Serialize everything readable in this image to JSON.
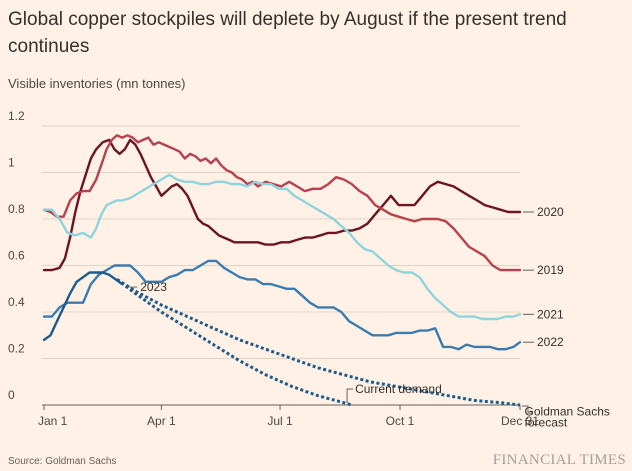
{
  "title": "Global copper stockpiles will deplete by August if the present trend continues",
  "subtitle": "Visible inventories (mn tonnes)",
  "source": "Source: Goldman Sachs",
  "brand": "FINANCIAL TIMES",
  "chart_data": {
    "type": "line",
    "title": "Global copper stockpiles will deplete by August if the present trend continues",
    "ylabel": "Visible inventories (mn tonnes)",
    "xlabel": "",
    "ylim": [
      0,
      1.2
    ],
    "xlim": [
      0,
      365
    ],
    "grid": true,
    "y_ticks": [
      {
        "value": 0,
        "label": "0"
      },
      {
        "value": 0.2,
        "label": "0.2"
      },
      {
        "value": 0.4,
        "label": "0.4"
      },
      {
        "value": 0.6,
        "label": "0.6"
      },
      {
        "value": 0.8,
        "label": "0.8"
      },
      {
        "value": 1.0,
        "label": "1"
      },
      {
        "value": 1.2,
        "label": "1.2"
      }
    ],
    "x_ticks": [
      {
        "value": 0,
        "label": "Jan 1"
      },
      {
        "value": 90,
        "label": "Apr 1"
      },
      {
        "value": 181,
        "label": "Jul 1"
      },
      {
        "value": 273,
        "label": "Oct 1"
      },
      {
        "value": 365,
        "label": "Dec 31"
      }
    ],
    "series": [
      {
        "name": "2020",
        "label": "2020",
        "color": "#6b1424",
        "style": "solid",
        "x": [
          0,
          6,
          12,
          16,
          20,
          24,
          28,
          32,
          36,
          40,
          45,
          50,
          54,
          58,
          62,
          66,
          70,
          74,
          78,
          82,
          86,
          90,
          94,
          98,
          102,
          106,
          110,
          114,
          118,
          122,
          126,
          130,
          134,
          138,
          142,
          146,
          152,
          158,
          164,
          170,
          176,
          182,
          188,
          194,
          200,
          206,
          212,
          218,
          224,
          230,
          236,
          242,
          248,
          254,
          260,
          266,
          272,
          278,
          284,
          290,
          296,
          302,
          308,
          314,
          320,
          326,
          332,
          338,
          344,
          350,
          356,
          360,
          365
        ],
        "values": [
          0.58,
          0.58,
          0.59,
          0.63,
          0.72,
          0.83,
          0.92,
          0.99,
          1.06,
          1.1,
          1.13,
          1.14,
          1.1,
          1.08,
          1.1,
          1.14,
          1.12,
          1.08,
          1.03,
          0.98,
          0.94,
          0.9,
          0.92,
          0.94,
          0.95,
          0.93,
          0.9,
          0.85,
          0.8,
          0.78,
          0.77,
          0.75,
          0.73,
          0.72,
          0.71,
          0.7,
          0.7,
          0.7,
          0.7,
          0.69,
          0.69,
          0.7,
          0.7,
          0.71,
          0.72,
          0.72,
          0.73,
          0.74,
          0.74,
          0.75,
          0.75,
          0.76,
          0.78,
          0.82,
          0.86,
          0.9,
          0.86,
          0.86,
          0.86,
          0.9,
          0.94,
          0.96,
          0.95,
          0.94,
          0.92,
          0.9,
          0.88,
          0.86,
          0.85,
          0.84,
          0.83,
          0.83,
          0.83
        ]
      },
      {
        "name": "2019",
        "label": "2019",
        "color": "#b8414e",
        "style": "solid",
        "x": [
          0,
          5,
          10,
          15,
          20,
          25,
          30,
          35,
          40,
          45,
          48,
          52,
          56,
          60,
          64,
          68,
          72,
          76,
          80,
          84,
          88,
          92,
          96,
          100,
          104,
          108,
          112,
          116,
          120,
          124,
          128,
          132,
          136,
          140,
          144,
          148,
          152,
          156,
          160,
          164,
          170,
          176,
          182,
          188,
          194,
          200,
          206,
          212,
          218,
          224,
          230,
          236,
          242,
          248,
          254,
          260,
          266,
          272,
          278,
          284,
          290,
          296,
          302,
          308,
          314,
          320,
          326,
          332,
          338,
          344,
          350,
          355,
          360,
          365
        ],
        "values": [
          0.84,
          0.83,
          0.81,
          0.81,
          0.88,
          0.91,
          0.92,
          0.92,
          0.97,
          1.05,
          1.1,
          1.14,
          1.16,
          1.15,
          1.16,
          1.15,
          1.13,
          1.14,
          1.15,
          1.12,
          1.13,
          1.12,
          1.11,
          1.1,
          1.09,
          1.06,
          1.08,
          1.07,
          1.05,
          1.06,
          1.04,
          1.06,
          1.03,
          1.01,
          1.0,
          0.98,
          0.97,
          0.95,
          0.96,
          0.94,
          0.96,
          0.95,
          0.94,
          0.96,
          0.94,
          0.92,
          0.93,
          0.93,
          0.95,
          0.98,
          0.97,
          0.95,
          0.92,
          0.9,
          0.86,
          0.84,
          0.82,
          0.81,
          0.8,
          0.79,
          0.8,
          0.8,
          0.8,
          0.79,
          0.76,
          0.72,
          0.68,
          0.66,
          0.64,
          0.6,
          0.58,
          0.58,
          0.58,
          0.58
        ]
      },
      {
        "name": "2021",
        "label": "2021",
        "color": "#8fd4dd",
        "style": "solid",
        "x": [
          0,
          6,
          12,
          18,
          24,
          30,
          36,
          40,
          44,
          48,
          52,
          56,
          60,
          66,
          72,
          78,
          84,
          90,
          96,
          102,
          108,
          114,
          120,
          126,
          132,
          138,
          144,
          150,
          156,
          162,
          168,
          174,
          180,
          186,
          192,
          198,
          204,
          210,
          216,
          222,
          228,
          234,
          240,
          246,
          252,
          258,
          264,
          270,
          276,
          282,
          288,
          294,
          300,
          306,
          312,
          318,
          324,
          330,
          336,
          342,
          348,
          354,
          360,
          365
        ],
        "values": [
          0.84,
          0.84,
          0.8,
          0.74,
          0.73,
          0.74,
          0.72,
          0.76,
          0.82,
          0.86,
          0.87,
          0.88,
          0.88,
          0.89,
          0.91,
          0.93,
          0.95,
          0.97,
          0.99,
          0.97,
          0.96,
          0.96,
          0.95,
          0.95,
          0.96,
          0.96,
          0.95,
          0.95,
          0.94,
          0.96,
          0.95,
          0.95,
          0.93,
          0.93,
          0.9,
          0.88,
          0.86,
          0.84,
          0.82,
          0.8,
          0.77,
          0.74,
          0.7,
          0.67,
          0.66,
          0.63,
          0.6,
          0.58,
          0.57,
          0.57,
          0.55,
          0.5,
          0.46,
          0.43,
          0.4,
          0.38,
          0.38,
          0.38,
          0.37,
          0.37,
          0.37,
          0.38,
          0.38,
          0.39
        ]
      },
      {
        "name": "2022",
        "label": "2022",
        "color": "#3a7bb0",
        "style": "solid",
        "x": [
          0,
          6,
          12,
          18,
          24,
          30,
          36,
          42,
          48,
          54,
          60,
          66,
          72,
          78,
          84,
          90,
          96,
          102,
          108,
          114,
          120,
          126,
          132,
          138,
          144,
          150,
          156,
          162,
          168,
          174,
          180,
          186,
          192,
          198,
          204,
          210,
          216,
          222,
          228,
          234,
          240,
          246,
          252,
          258,
          264,
          270,
          276,
          282,
          288,
          294,
          300,
          306,
          312,
          318,
          324,
          330,
          336,
          342,
          348,
          354,
          360,
          365
        ],
        "values": [
          0.38,
          0.38,
          0.42,
          0.44,
          0.44,
          0.44,
          0.52,
          0.56,
          0.58,
          0.6,
          0.6,
          0.6,
          0.57,
          0.53,
          0.53,
          0.53,
          0.55,
          0.56,
          0.58,
          0.58,
          0.6,
          0.62,
          0.62,
          0.59,
          0.57,
          0.55,
          0.54,
          0.54,
          0.52,
          0.52,
          0.51,
          0.5,
          0.5,
          0.47,
          0.44,
          0.42,
          0.42,
          0.42,
          0.4,
          0.36,
          0.34,
          0.32,
          0.3,
          0.3,
          0.3,
          0.31,
          0.31,
          0.31,
          0.32,
          0.32,
          0.33,
          0.25,
          0.25,
          0.24,
          0.26,
          0.25,
          0.25,
          0.25,
          0.24,
          0.24,
          0.25,
          0.27
        ]
      },
      {
        "name": "2023",
        "label": "2023",
        "color": "#1f5a8c",
        "style": "solid",
        "x": [
          0,
          5,
          10,
          15,
          20,
          25,
          30,
          35,
          40,
          45,
          50,
          55,
          60
        ],
        "values": [
          0.28,
          0.3,
          0.36,
          0.42,
          0.48,
          0.53,
          0.55,
          0.57,
          0.57,
          0.57,
          0.56,
          0.54,
          0.52
        ]
      },
      {
        "name": "Goldman Sachs forecast",
        "label": "Goldman Sachs forecast",
        "color": "#1f5a8c",
        "style": "dotted",
        "x": [
          56,
          70,
          90,
          110,
          130,
          150,
          170,
          190,
          210,
          230,
          250,
          270,
          290,
          310,
          330,
          350,
          365
        ],
        "values": [
          0.54,
          0.49,
          0.43,
          0.38,
          0.33,
          0.28,
          0.24,
          0.2,
          0.16,
          0.13,
          0.1,
          0.08,
          0.06,
          0.04,
          0.02,
          0.01,
          0.0
        ]
      },
      {
        "name": "Current demand",
        "label": "Current demand",
        "color": "#1f5a8c",
        "style": "dotted",
        "x": [
          56,
          70,
          90,
          110,
          130,
          150,
          170,
          190,
          210,
          230,
          236
        ],
        "values": [
          0.54,
          0.48,
          0.4,
          0.33,
          0.26,
          0.19,
          0.13,
          0.08,
          0.04,
          0.01,
          0.0
        ]
      }
    ],
    "annotations": [
      {
        "text": "2023",
        "x": 73,
        "y": 0.49
      },
      {
        "text": "Current demand",
        "x": 237,
        "y": 0.06
      },
      {
        "text": "Goldman Sachs",
        "x": 370,
        "y": -0.02
      },
      {
        "text": "forecast",
        "x": 370,
        "y": -0.08
      }
    ]
  }
}
